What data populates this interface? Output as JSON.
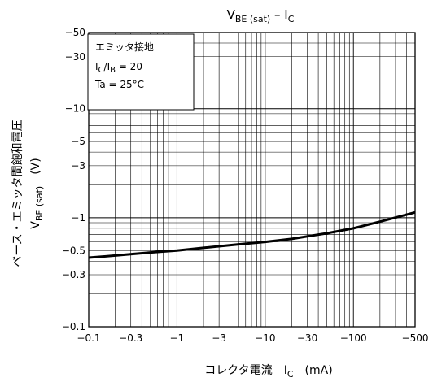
{
  "chart_data": {
    "type": "line",
    "title": {
      "base": "V",
      "sub": "BE (sat)",
      "rest": " – I",
      "sub2": "C"
    },
    "xlabel": {
      "prefix": "コレクタ電流　I",
      "sub": "C",
      "suffix": "　(mA)"
    },
    "ylabel": {
      "line1": "ベース・エミッタ間飽和電圧",
      "line2_base": "V",
      "line2_sub": "BE (sat)",
      "line2_unit": "　(V)"
    },
    "xscale": "log",
    "yscale": "log",
    "xlim": [
      -0.1,
      -500
    ],
    "ylim": [
      -0.1,
      -50
    ],
    "x_ticks": [
      -0.1,
      -0.3,
      -1,
      -3,
      -10,
      -30,
      -100,
      -500
    ],
    "x_tick_labels": [
      "−0.1",
      "−0.3",
      "−1",
      "−3",
      "−10",
      "−30",
      "−100",
      "−500"
    ],
    "y_ticks": [
      -0.1,
      -0.3,
      -0.5,
      -1,
      -3,
      -5,
      -10,
      -30,
      -50
    ],
    "y_tick_labels": [
      "−0.1",
      "−0.3",
      "−0.5",
      "−1",
      "−3",
      "−5",
      "−10",
      "−30",
      "−50"
    ],
    "grid": true,
    "legend": {
      "position": "top-left",
      "line1": "エミッタ接地",
      "line2_I1": "I",
      "line2_sub1": "C",
      "line2_I2": "/I",
      "line2_sub2": "B",
      "line2_val": " = 20",
      "line3": "Ta = 25°C"
    },
    "series": [
      {
        "x": [
          -0.1,
          -0.2,
          -0.5,
          -1,
          -2,
          -5,
          -10,
          -20,
          -50,
          -100,
          -200,
          -500
        ],
        "y": [
          -0.43,
          -0.45,
          -0.48,
          -0.5,
          -0.53,
          -0.57,
          -0.6,
          -0.64,
          -0.72,
          -0.8,
          -0.92,
          -1.12
        ]
      }
    ]
  }
}
